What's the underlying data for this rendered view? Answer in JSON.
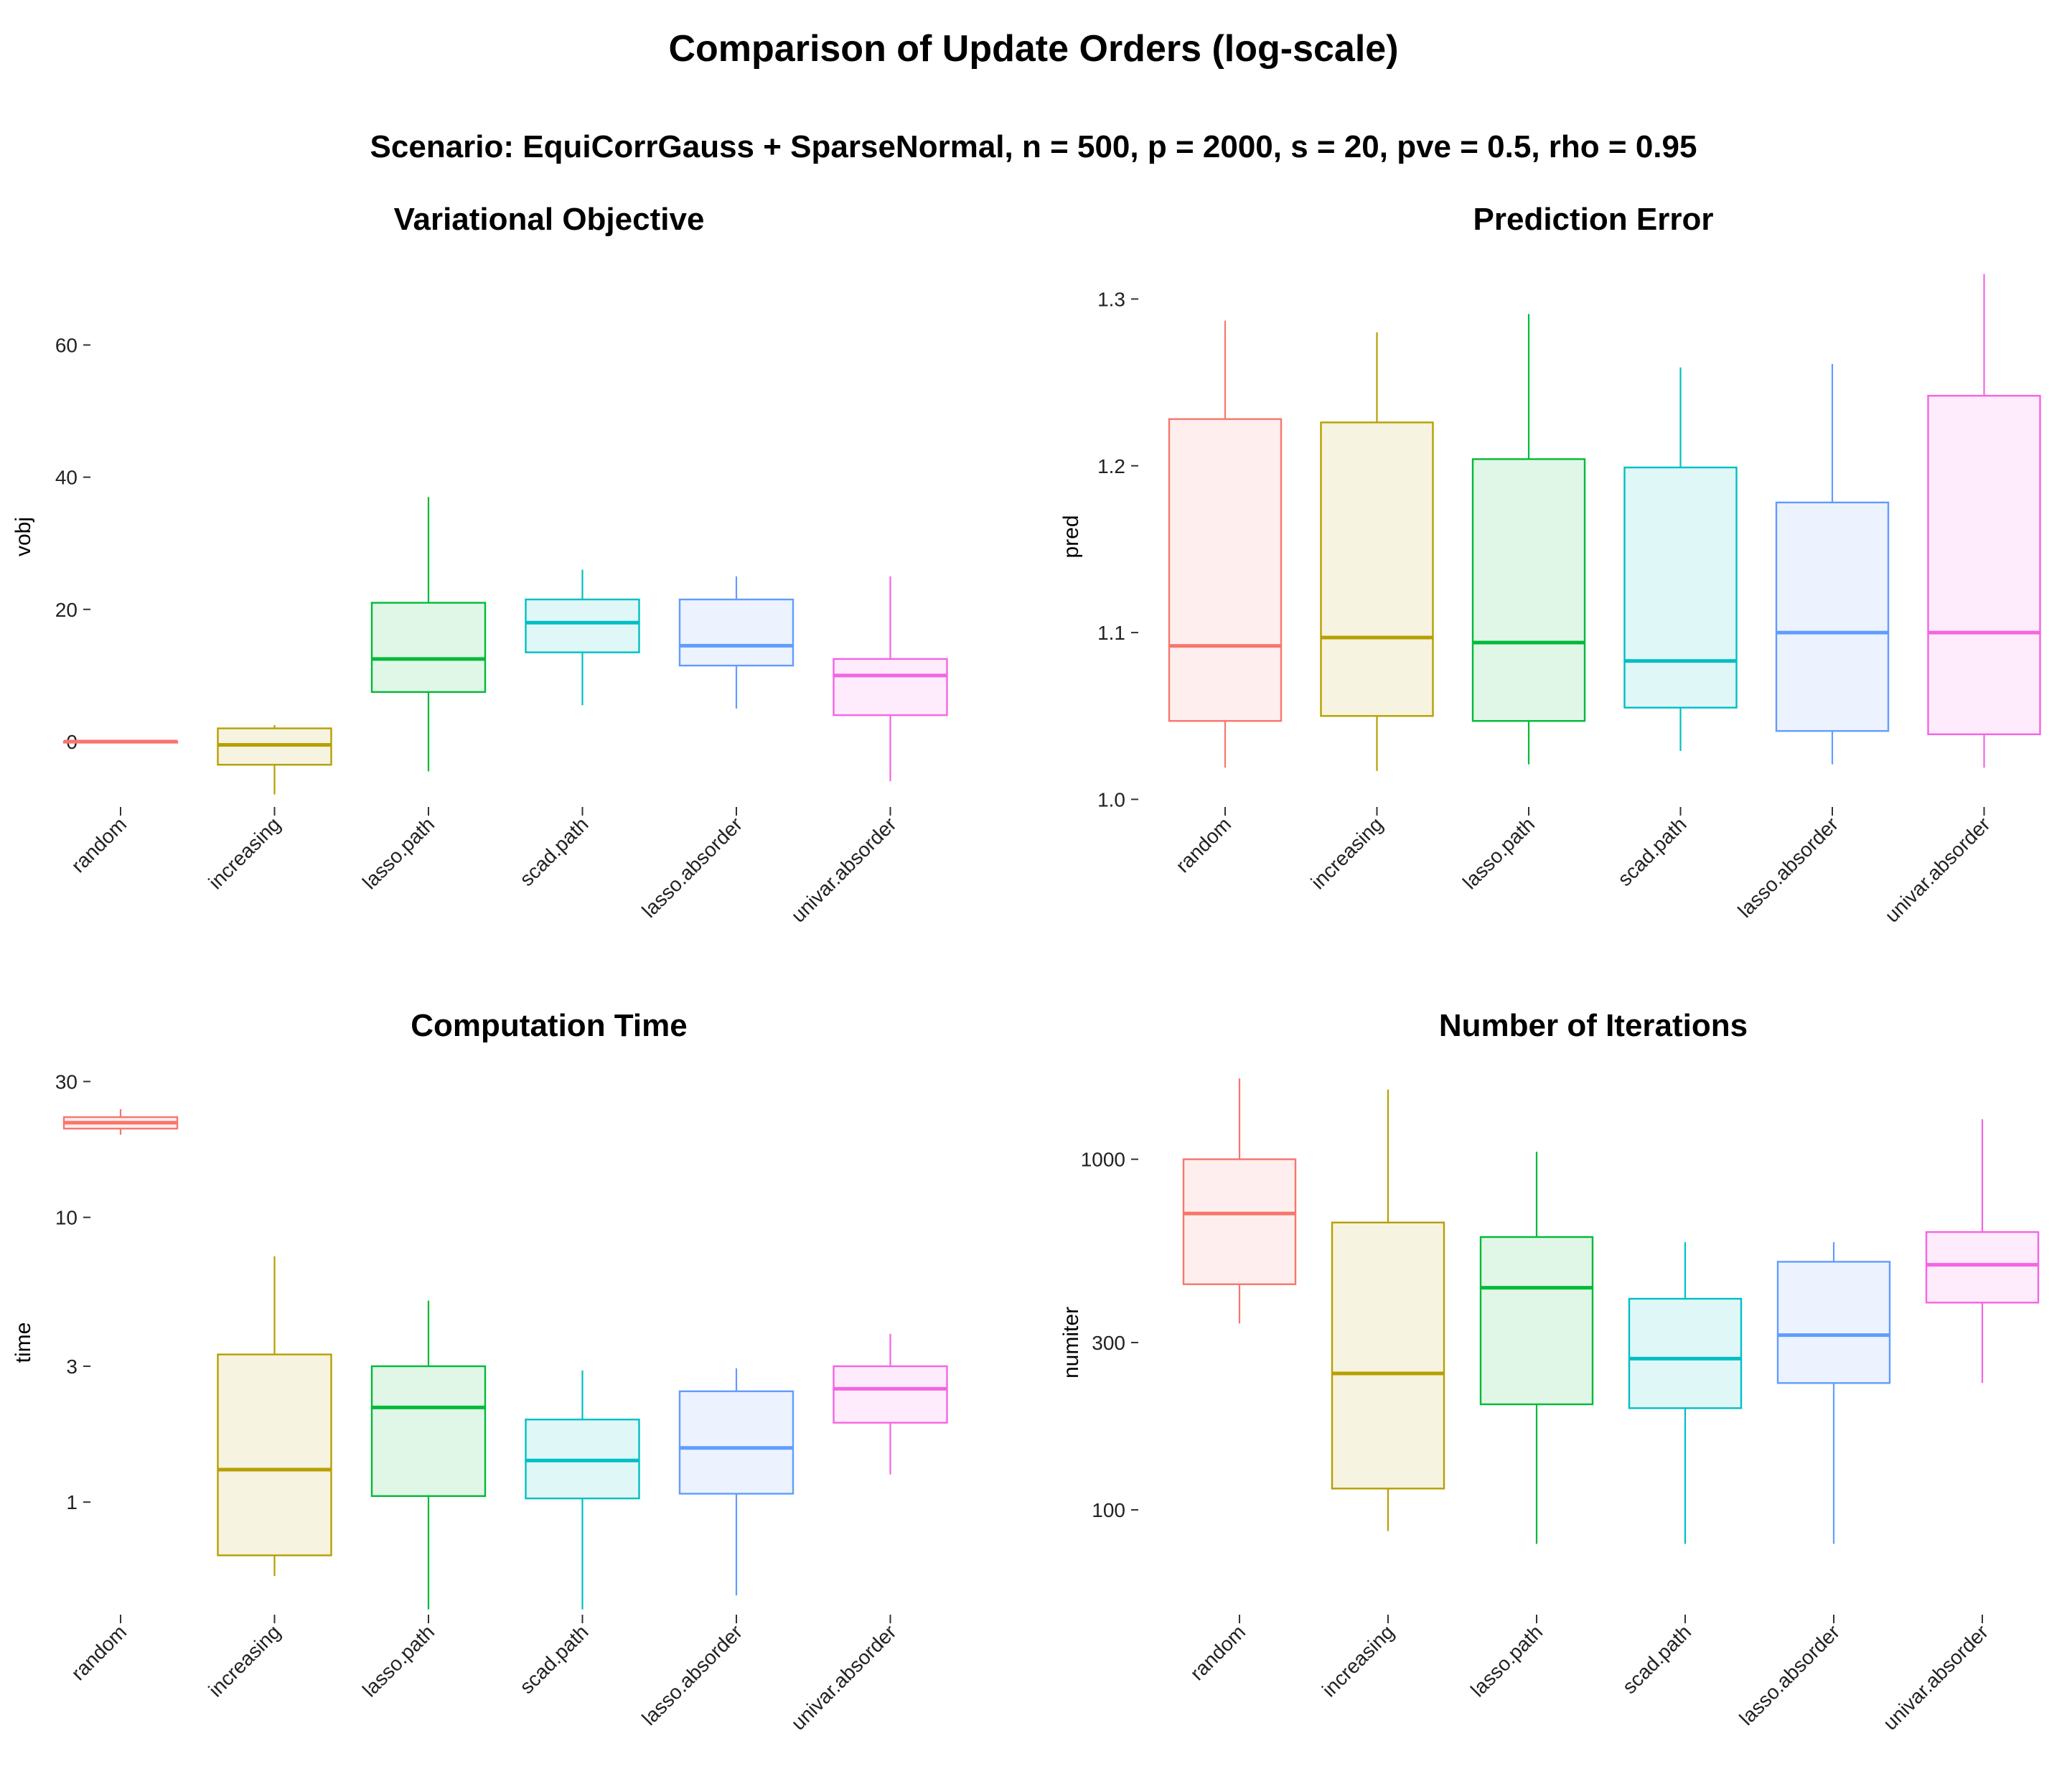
{
  "figure": {
    "title": "Comparison of Update Orders (log-scale)",
    "subtitle": "Scenario: EquiCorrGauss + SparseNormal, n = 500, p = 2000, s = 20, pve = 0.5, rho = 0.95"
  },
  "colors": [
    "#F8766D",
    "#B79F00",
    "#00BA38",
    "#00BFC4",
    "#619CFF",
    "#F564E3"
  ],
  "chart_data": [
    {
      "type": "box",
      "title": "Variational Objective",
      "xlabel": "",
      "ylabel": "vobj",
      "yscale": "linear",
      "ylim": [
        -10,
        72
      ],
      "yticks": [
        0,
        20,
        40,
        60
      ],
      "ytick_labels": [
        "0",
        "20",
        "40",
        "60"
      ],
      "categories": [
        "random",
        "increasing",
        "lasso.path",
        "scad.path",
        "lasso.absorder",
        "univar.absorder"
      ],
      "boxes": [
        {
          "min": 0,
          "q1": 0,
          "median": 0,
          "q3": 0,
          "max": 0
        },
        {
          "min": -8,
          "q1": -3.5,
          "median": -0.5,
          "q3": 2,
          "max": 2.5
        },
        {
          "min": -4.5,
          "q1": 7.5,
          "median": 12.5,
          "q3": 21,
          "max": 37
        },
        {
          "min": 5.5,
          "q1": 13.5,
          "median": 18,
          "q3": 21.5,
          "max": 26
        },
        {
          "min": 5,
          "q1": 11.5,
          "median": 14.5,
          "q3": 21.5,
          "max": 25
        },
        {
          "min": -6,
          "q1": 4,
          "median": 10,
          "q3": 12.5,
          "max": 25
        }
      ]
    },
    {
      "type": "box",
      "title": "Prediction Error",
      "xlabel": "",
      "ylabel": "pred",
      "yscale": "linear",
      "ylim": [
        0.995,
        1.32
      ],
      "yticks": [
        1.0,
        1.1,
        1.2,
        1.3
      ],
      "ytick_labels": [
        "1.0",
        "1.1",
        "1.2",
        "1.3"
      ],
      "categories": [
        "random",
        "increasing",
        "lasso.path",
        "scad.path",
        "lasso.absorder",
        "univar.absorder"
      ],
      "boxes": [
        {
          "min": 1.019,
          "q1": 1.047,
          "median": 1.092,
          "q3": 1.228,
          "max": 1.287
        },
        {
          "min": 1.017,
          "q1": 1.05,
          "median": 1.097,
          "q3": 1.226,
          "max": 1.28
        },
        {
          "min": 1.021,
          "q1": 1.047,
          "median": 1.094,
          "q3": 1.204,
          "max": 1.291
        },
        {
          "min": 1.029,
          "q1": 1.055,
          "median": 1.083,
          "q3": 1.199,
          "max": 1.259
        },
        {
          "min": 1.021,
          "q1": 1.041,
          "median": 1.1,
          "q3": 1.178,
          "max": 1.261
        },
        {
          "min": 1.019,
          "q1": 1.039,
          "median": 1.1,
          "q3": 1.242,
          "max": 1.315
        }
      ]
    },
    {
      "type": "box",
      "title": "Computation Time",
      "xlabel": "",
      "ylabel": "time",
      "yscale": "log",
      "ylim": [
        0.4,
        33
      ],
      "yticks": [
        1,
        3,
        10,
        30
      ],
      "ytick_labels": [
        "1",
        "3",
        "10",
        "30"
      ],
      "categories": [
        "random",
        "increasing",
        "lasso.path",
        "scad.path",
        "lasso.absorder",
        "univar.absorder"
      ],
      "boxes": [
        {
          "min": 19.5,
          "q1": 20.5,
          "median": 21.5,
          "q3": 22.5,
          "max": 24
        },
        {
          "min": 0.55,
          "q1": 0.65,
          "median": 1.3,
          "q3": 3.3,
          "max": 7.3
        },
        {
          "min": 0.42,
          "q1": 1.05,
          "median": 2.15,
          "q3": 3.0,
          "max": 5.1
        },
        {
          "min": 0.42,
          "q1": 1.03,
          "median": 1.4,
          "q3": 1.95,
          "max": 2.9
        },
        {
          "min": 0.47,
          "q1": 1.07,
          "median": 1.55,
          "q3": 2.45,
          "max": 2.95
        },
        {
          "min": 1.25,
          "q1": 1.9,
          "median": 2.5,
          "q3": 3.0,
          "max": 3.9
        }
      ]
    },
    {
      "type": "box",
      "title": "Number of Iterations",
      "xlabel": "",
      "ylabel": "numiter",
      "yscale": "log",
      "ylim": [
        50,
        1800
      ],
      "yticks": [
        100,
        300,
        1000
      ],
      "ytick_labels": [
        "100",
        "300",
        "1000"
      ],
      "categories": [
        "random",
        "increasing",
        "lasso.path",
        "scad.path",
        "lasso.absorder",
        "univar.absorder"
      ],
      "boxes": [
        {
          "min": 340,
          "q1": 440,
          "median": 700,
          "q3": 1000,
          "max": 1700
        },
        {
          "min": 87,
          "q1": 115,
          "median": 245,
          "q3": 660,
          "max": 1580
        },
        {
          "min": 80,
          "q1": 200,
          "median": 430,
          "q3": 600,
          "max": 1050
        },
        {
          "min": 80,
          "q1": 195,
          "median": 270,
          "q3": 400,
          "max": 580
        },
        {
          "min": 80,
          "q1": 230,
          "median": 315,
          "q3": 510,
          "max": 580
        },
        {
          "min": 230,
          "q1": 390,
          "median": 500,
          "q3": 620,
          "max": 1300
        }
      ]
    }
  ]
}
